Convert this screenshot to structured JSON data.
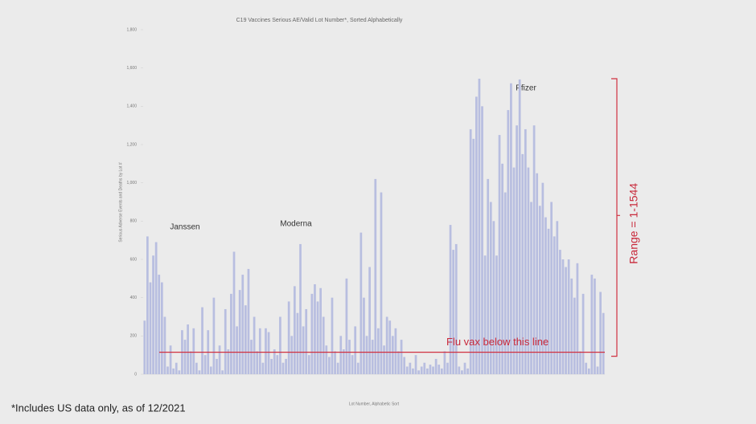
{
  "chart_data": {
    "type": "bar",
    "title": "C19 Vaccines Serious AE/Valid Lot Number*, Sorted Alphabetically",
    "x_label": "Lot Number, Alphabetic Sort",
    "y_label": "Serious Adverse Events and Deaths by Lot #",
    "color": "#b8bee0",
    "ylim": [
      0,
      1800
    ],
    "yticks": [
      0,
      200,
      400,
      600,
      800,
      {
        "value": 1000,
        "label": "1,000"
      },
      {
        "value": 1200,
        "label": "1,200"
      },
      {
        "value": 1400,
        "label": "1,400"
      },
      {
        "value": 1600,
        "label": "1,600"
      },
      {
        "value": 1800,
        "label": "1,800"
      }
    ],
    "categories": [
      null,
      null,
      null,
      null,
      null,
      null,
      null,
      null,
      null,
      null,
      null,
      null,
      null,
      null,
      null,
      null,
      null,
      null,
      null,
      null,
      null,
      null,
      null,
      null,
      null,
      null,
      null,
      null,
      null,
      null,
      null,
      null,
      null,
      null,
      null,
      null,
      null,
      null,
      null,
      null,
      null,
      null,
      null,
      null,
      null,
      null,
      null,
      null,
      null,
      null,
      null,
      null,
      null,
      null,
      null,
      null,
      null,
      null,
      null,
      null,
      null,
      null,
      null,
      null,
      null,
      null,
      null,
      null,
      null,
      null,
      null,
      null,
      null,
      null,
      null,
      null,
      null,
      null,
      null,
      null,
      null,
      null,
      null,
      null,
      null,
      null,
      null,
      null,
      null,
      null,
      null,
      null,
      null,
      null,
      null,
      null,
      null,
      null,
      null,
      null,
      null,
      null,
      null,
      null,
      null,
      null,
      null,
      null,
      null,
      null,
      null,
      null,
      null,
      null,
      null,
      null,
      null,
      null,
      null,
      null,
      null,
      null,
      null,
      null,
      null,
      null,
      null,
      null,
      null,
      null,
      null,
      null,
      null,
      null,
      null,
      null,
      null,
      null,
      null,
      null,
      null,
      null,
      null,
      null,
      null,
      null,
      null,
      null,
      null,
      null,
      null,
      null,
      null,
      null,
      null,
      null,
      null,
      null,
      null,
      null
    ],
    "values": [
      280,
      720,
      480,
      620,
      690,
      520,
      480,
      300,
      40,
      150,
      30,
      60,
      20,
      230,
      180,
      260,
      120,
      240,
      60,
      20,
      350,
      100,
      230,
      40,
      400,
      80,
      150,
      20,
      340,
      130,
      420,
      640,
      250,
      440,
      520,
      360,
      550,
      180,
      300,
      120,
      240,
      60,
      240,
      220,
      80,
      130,
      100,
      300,
      60,
      80,
      380,
      200,
      460,
      320,
      680,
      250,
      340,
      100,
      420,
      470,
      380,
      450,
      300,
      150,
      90,
      400,
      120,
      60,
      200,
      130,
      500,
      180,
      100,
      250,
      60,
      740,
      400,
      200,
      560,
      180,
      1020,
      240,
      950,
      150,
      300,
      280,
      200,
      240,
      120,
      180,
      90,
      40,
      60,
      30,
      100,
      20,
      40,
      60,
      30,
      50,
      40,
      80,
      50,
      30,
      120,
      60,
      780,
      650,
      680,
      40,
      20,
      60,
      30,
      1280,
      1230,
      1450,
      1544,
      1400,
      620,
      1020,
      900,
      800,
      620,
      1250,
      1100,
      950,
      1380,
      1520,
      1080,
      1300,
      1540,
      1150,
      1280,
      1080,
      900,
      1300,
      1050,
      880,
      1000,
      820,
      760,
      900,
      720,
      800,
      650,
      600,
      560,
      600,
      500,
      400,
      580,
      120,
      420,
      60,
      30,
      520,
      500,
      40,
      430,
      320
    ],
    "groups": [
      "Janssen",
      "Moderna",
      "Pfizer"
    ],
    "flu_line": 115,
    "flu_label": "Flu vax below this line",
    "range_label": "Range = 1-1544",
    "range_top": 1544,
    "footnote": "*Includes US data only, as of 12/2021"
  }
}
